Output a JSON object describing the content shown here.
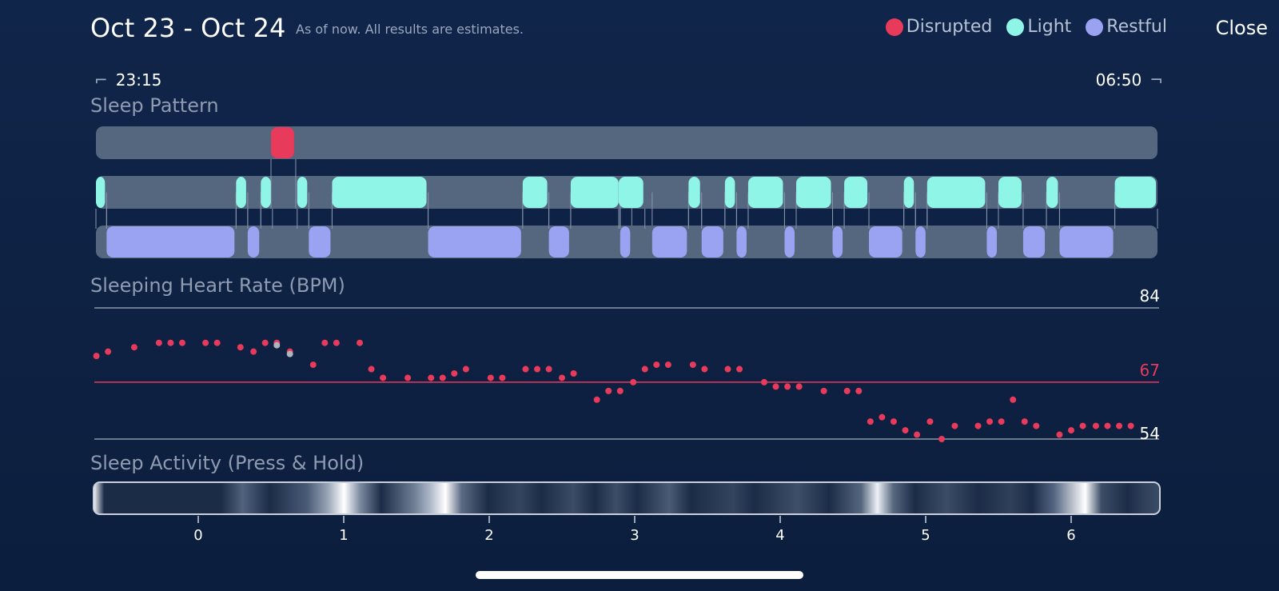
{
  "header": {
    "title": "Oct 23 - Oct 24",
    "subtitle": "As of now. All results are estimates.",
    "close_label": "Close",
    "legend": [
      {
        "label": "Disrupted",
        "color": "#e83a5b"
      },
      {
        "label": "Light",
        "color": "#8ff5e6"
      },
      {
        "label": "Restful",
        "color": "#9aa3f2"
      }
    ]
  },
  "time_range": {
    "start": "23:15",
    "end": "06:50"
  },
  "sections": {
    "sleep_pattern": "Sleep Pattern",
    "heart_rate": "Sleeping Heart Rate (BPM)",
    "activity": "Sleep Activity (Press & Hold)"
  },
  "chart_data": {
    "type": "scatter",
    "sleep_pattern": {
      "x_range": [
        -0.75,
        6.7
      ],
      "stages": {
        "disrupted": [
          [
            0.5,
            0.67
          ]
        ],
        "light": [
          [
            -0.72,
            -0.63
          ],
          [
            0.26,
            0.34
          ],
          [
            0.43,
            0.51
          ],
          [
            0.68,
            0.76
          ],
          [
            0.92,
            1.58
          ],
          [
            2.23,
            2.41
          ],
          [
            2.56,
            2.9
          ],
          [
            2.89,
            3.07
          ],
          [
            3.37,
            3.46
          ],
          [
            3.62,
            3.7
          ],
          [
            3.78,
            4.03
          ],
          [
            4.11,
            4.36
          ],
          [
            4.44,
            4.61
          ],
          [
            4.85,
            4.93
          ],
          [
            5.01,
            5.42
          ],
          [
            5.5,
            5.67
          ],
          [
            5.83,
            5.92
          ],
          [
            6.3,
            6.7
          ]
        ],
        "restful": [
          [
            -0.63,
            0.26
          ],
          [
            0.34,
            0.43
          ],
          [
            0.76,
            0.92
          ],
          [
            1.58,
            2.23
          ],
          [
            2.41,
            2.56
          ],
          [
            2.9,
            2.98
          ],
          [
            3.12,
            3.37
          ],
          [
            3.46,
            3.62
          ],
          [
            3.7,
            3.78
          ],
          [
            4.03,
            4.11
          ],
          [
            4.36,
            4.44
          ],
          [
            4.61,
            4.85
          ],
          [
            4.93,
            5.01
          ],
          [
            5.42,
            5.5
          ],
          [
            5.67,
            5.83
          ],
          [
            5.92,
            6.3
          ]
        ]
      }
    },
    "heart_rate": {
      "ylabel": "BPM",
      "reference_lines": {
        "max": 84,
        "avg": 67,
        "min": 54
      },
      "ylim": [
        54,
        84
      ],
      "x": [
        -0.7,
        -0.62,
        -0.44,
        -0.27,
        -0.19,
        -0.11,
        0.05,
        0.13,
        0.29,
        0.38,
        0.46,
        0.54,
        0.63,
        0.79,
        0.87,
        0.95,
        1.11,
        1.19,
        1.27,
        1.44,
        1.6,
        1.68,
        1.76,
        1.84,
        2.01,
        2.09,
        2.25,
        2.33,
        2.41,
        2.5,
        2.58,
        2.74,
        2.82,
        2.9,
        2.99,
        3.07,
        3.15,
        3.23,
        3.4,
        3.48,
        3.64,
        3.72,
        3.89,
        3.97,
        4.05,
        4.13,
        4.3,
        4.46,
        4.54,
        4.62,
        4.7,
        4.78,
        4.86,
        4.94,
        5.03,
        5.11,
        5.2,
        5.36,
        5.44,
        5.52,
        5.6,
        5.68,
        5.76,
        5.92,
        6.0,
        6.08,
        6.17,
        6.25,
        6.33,
        6.41
      ],
      "y": [
        73,
        74,
        75,
        76,
        76,
        76,
        76,
        76,
        75,
        74,
        76,
        76,
        74,
        71,
        76,
        76,
        76,
        70,
        68,
        68,
        68,
        68,
        69,
        70,
        68,
        68,
        70,
        70,
        70,
        68,
        69,
        63,
        65,
        65,
        67,
        70,
        71,
        71,
        71,
        70,
        70,
        70,
        67,
        66,
        66,
        66,
        65,
        65,
        65,
        58,
        59,
        58,
        56,
        55,
        58,
        54,
        57,
        57,
        58,
        58,
        63,
        58,
        57,
        55,
        56,
        57,
        57,
        57,
        57,
        57
      ],
      "anomaly_points": [
        [
          0.54,
          76
        ],
        [
          0.63,
          74
        ]
      ]
    },
    "x_axis": {
      "ticks": [
        "0",
        "1",
        "2",
        "3",
        "4",
        "5",
        "6"
      ]
    }
  }
}
